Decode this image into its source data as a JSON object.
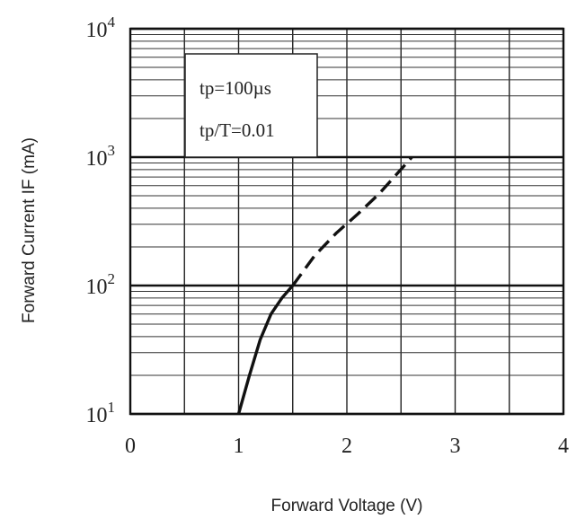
{
  "chart_data": {
    "type": "line",
    "scale": {
      "x": "linear",
      "y": "log"
    },
    "xlim": [
      0,
      4
    ],
    "ylim": [
      10,
      10000
    ],
    "xticks": [
      {
        "value": 0,
        "label": "0"
      },
      {
        "value": 1,
        "label": "1"
      },
      {
        "value": 2,
        "label": "2"
      },
      {
        "value": 3,
        "label": "3"
      },
      {
        "value": 4,
        "label": "4"
      }
    ],
    "yticks": [
      {
        "value": 10,
        "base": "10",
        "exp": "1"
      },
      {
        "value": 100,
        "base": "10",
        "exp": "2"
      },
      {
        "value": 1000,
        "base": "10",
        "exp": "3"
      },
      {
        "value": 10000,
        "base": "10",
        "exp": "4"
      }
    ],
    "xlabel": "Forward Voltage (V)",
    "ylabel": "Forward Current IF (mA)",
    "annotations": [
      "tp=100µs",
      "tp/T=0.01"
    ],
    "grid": true,
    "series": [
      {
        "style": "solid",
        "x": [
          1.0,
          1.1,
          1.2,
          1.3,
          1.4,
          1.5
        ],
        "y": [
          10,
          20,
          38,
          60,
          80,
          100
        ]
      },
      {
        "style": "dashed",
        "x": [
          1.5,
          1.7,
          1.9,
          2.1,
          2.3,
          2.45,
          2.6
        ],
        "y": [
          100,
          170,
          255,
          360,
          520,
          720,
          1000
        ]
      }
    ]
  }
}
